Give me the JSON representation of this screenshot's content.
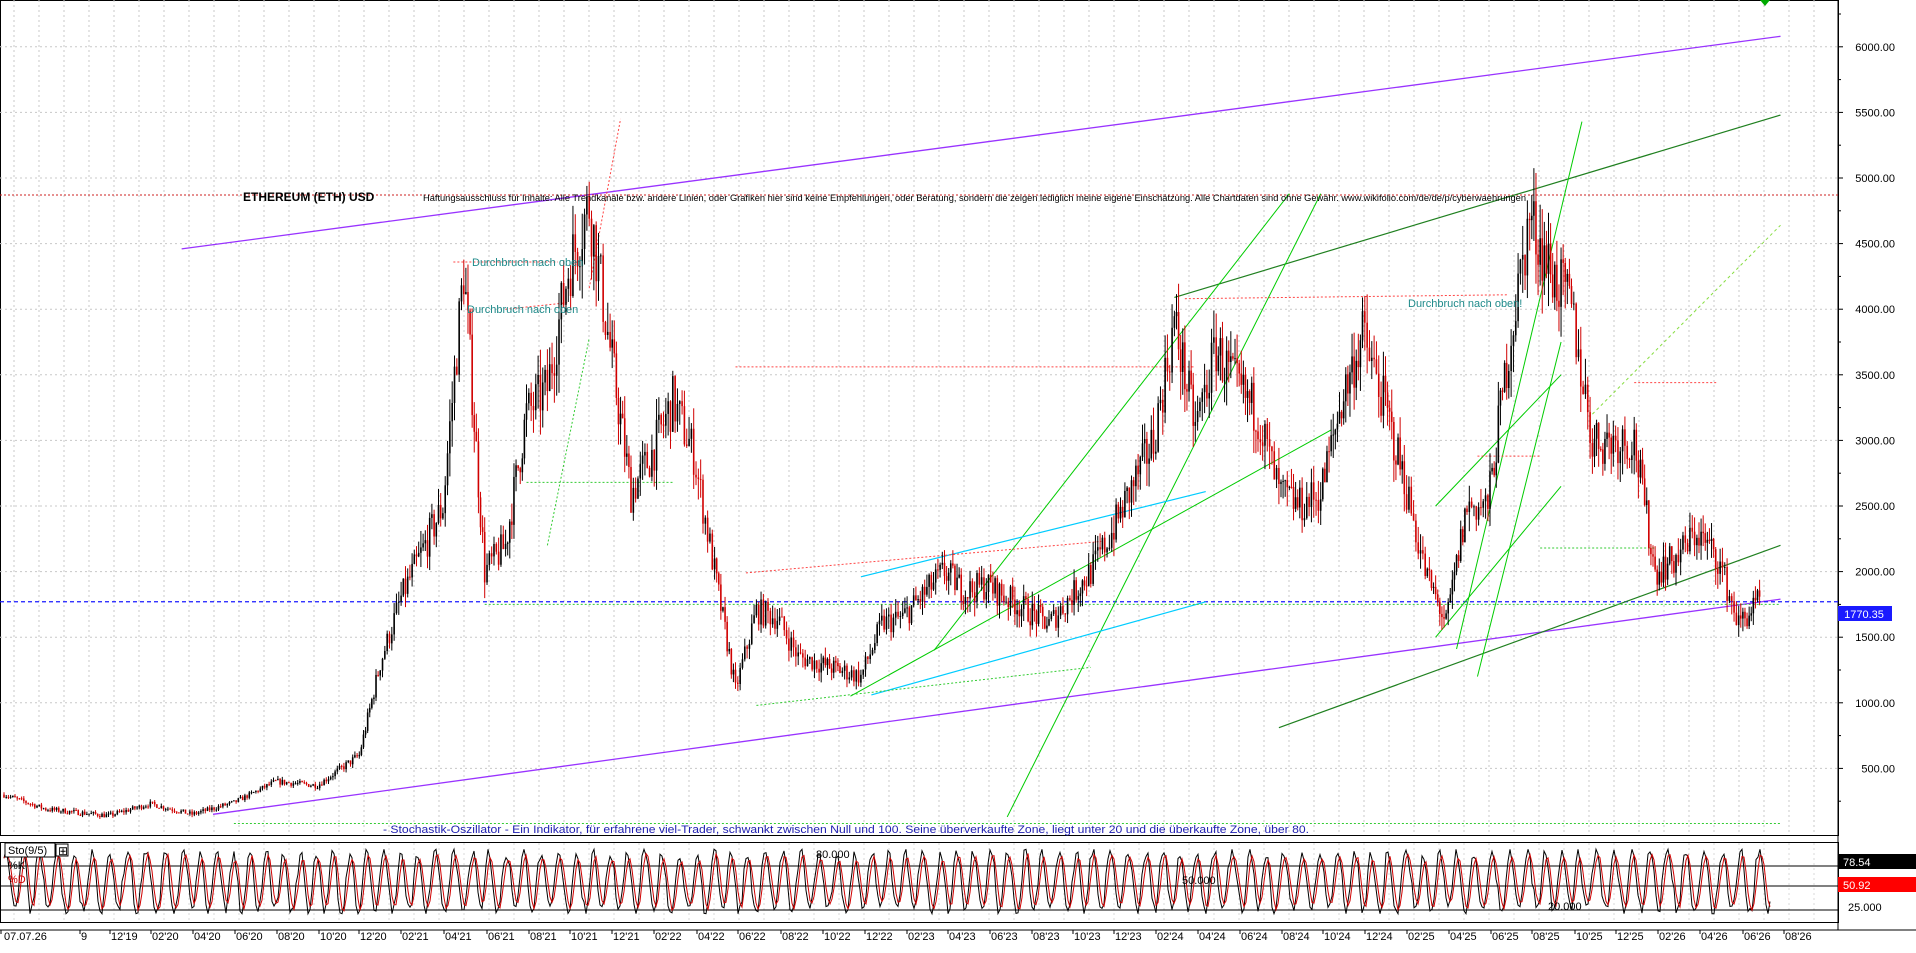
{
  "header": {
    "title": "ETHEREUM (ETH) USD",
    "disclaimer": "Haftungsausschluss für Inhalte: Alle Trendkanäle bzw. andere Linien, oder Grafiken hier sind keine Empfehlungen, oder Beratung, sondern die zeigen lediglich meine eigene Einschätzung. Alle Chartdaten sind ohne Gewähr. www.wikifolio.com/de/de/p/cyberwaehrungen"
  },
  "annotations": {
    "breakout_1": "Durchbruch nach oben",
    "breakout_2": "Durchbruch nach oben",
    "breakout_3": "Durchbruch nach oben!"
  },
  "oscillator": {
    "name": "Sto(9/5)",
    "k_label": "%K",
    "d_label": "%D",
    "k_value": "78.54",
    "d_value": "50.92",
    "level_80": "80.000",
    "level_50": "50.000",
    "level_20": "20.000",
    "axis_25": "25.000",
    "description": "- Stochastik-Oszillator - Ein Indikator, für erfahrene viel-Trader, schwankt zwischen Null und 100. Seine überverkaufte Zone, liegt unter 20 und die überkaufte Zone, über 80."
  },
  "price_marker": {
    "label": "1770.35",
    "value": 1770.35,
    "color": "#1a1aff"
  },
  "colors": {
    "candle_up": "#000000",
    "candle_down": "#d00000",
    "channel": "#9933ff",
    "green_line": "#00cc00",
    "dark_green_line": "#208020",
    "cyan_line": "#00ccff",
    "red_dotted": "#ff4444",
    "green_dotted": "#33cc33"
  },
  "chart_data": {
    "type": "candlestick",
    "title": "ETHEREUM (ETH) USD",
    "ylim": [
      0,
      6500
    ],
    "y_ticks": [
      "6000.00",
      "5500.00",
      "5000.00",
      "4500.00",
      "4000.00",
      "3500.00",
      "3000.00",
      "2500.00",
      "2000.00",
      "1500.00",
      "1000.00",
      "500.00"
    ],
    "x_ticks": [
      "07.07.26",
      "9",
      "12'19",
      "02'20",
      "04'20",
      "06'20",
      "08'20",
      "10'20",
      "12'20",
      "02'21",
      "04'21",
      "06'21",
      "08'21",
      "10'21",
      "12'21",
      "02'22",
      "04'22",
      "06'22",
      "08'22",
      "10'22",
      "12'22",
      "02'23",
      "04'23",
      "06'23",
      "08'23",
      "10'23",
      "12'23",
      "02'24",
      "04'24",
      "06'24",
      "08'24",
      "10'24",
      "12'24",
      "02'25",
      "04'25",
      "06'25",
      "08'25",
      "10'25",
      "12'25",
      "02'26",
      "04'26",
      "06'26",
      "08'26"
    ],
    "grid": true,
    "series": [
      {
        "values": [
          {
            "t": "07'19",
            "v": 300
          },
          {
            "t": "09'19",
            "v": 190
          },
          {
            "t": "12'19",
            "v": 140
          },
          {
            "t": "02'20",
            "v": 230
          },
          {
            "t": "04'20",
            "v": 150
          },
          {
            "t": "06'20",
            "v": 240
          },
          {
            "t": "08'20",
            "v": 400
          },
          {
            "t": "10'20",
            "v": 370
          },
          {
            "t": "12'20",
            "v": 600
          },
          {
            "t": "01'21",
            "v": 1300
          },
          {
            "t": "02'21",
            "v": 1800
          },
          {
            "t": "04'21",
            "v": 2500
          },
          {
            "t": "05'21",
            "v": 4300
          },
          {
            "t": "06'21",
            "v": 2000
          },
          {
            "t": "07'21",
            "v": 2200
          },
          {
            "t": "08'21",
            "v": 3200
          },
          {
            "t": "09'21",
            "v": 3400
          },
          {
            "t": "10'21",
            "v": 4300
          },
          {
            "t": "11'21",
            "v": 4800
          },
          {
            "t": "12'21",
            "v": 3700
          },
          {
            "t": "01'22",
            "v": 2600
          },
          {
            "t": "02'22",
            "v": 2900
          },
          {
            "t": "03'22",
            "v": 3300
          },
          {
            "t": "04'22",
            "v": 2900
          },
          {
            "t": "05'22",
            "v": 2000
          },
          {
            "t": "06'22",
            "v": 1100
          },
          {
            "t": "07'22",
            "v": 1700
          },
          {
            "t": "08'22",
            "v": 1650
          },
          {
            "t": "09'22",
            "v": 1350
          },
          {
            "t": "10'22",
            "v": 1300
          },
          {
            "t": "11'22",
            "v": 1250
          },
          {
            "t": "12'22",
            "v": 1200
          },
          {
            "t": "01'23",
            "v": 1600
          },
          {
            "t": "02'23",
            "v": 1650
          },
          {
            "t": "04'23",
            "v": 2000
          },
          {
            "t": "05'23",
            "v": 1850
          },
          {
            "t": "06'23",
            "v": 1900
          },
          {
            "t": "08'23",
            "v": 1700
          },
          {
            "t": "09'23",
            "v": 1600
          },
          {
            "t": "10'23",
            "v": 1800
          },
          {
            "t": "11'23",
            "v": 2000
          },
          {
            "t": "12'23",
            "v": 2300
          },
          {
            "t": "02'24",
            "v": 3000
          },
          {
            "t": "03'24",
            "v": 3900
          },
          {
            "t": "04'24",
            "v": 3100
          },
          {
            "t": "05'24",
            "v": 3700
          },
          {
            "t": "06'24",
            "v": 3400
          },
          {
            "t": "07'24",
            "v": 3200
          },
          {
            "t": "08'24",
            "v": 2600
          },
          {
            "t": "09'24",
            "v": 2500
          },
          {
            "t": "10'24",
            "v": 2600
          },
          {
            "t": "11'24",
            "v": 3300
          },
          {
            "t": "12'24",
            "v": 3800
          },
          {
            "t": "01'25",
            "v": 3300
          },
          {
            "t": "02'25",
            "v": 2700
          },
          {
            "t": "03'25",
            "v": 2000
          },
          {
            "t": "04'25",
            "v": 1600
          },
          {
            "t": "05'25",
            "v": 2500
          },
          {
            "t": "06'25",
            "v": 2500
          },
          {
            "t": "07'25",
            "v": 3700
          },
          {
            "t": "08'25",
            "v": 4700
          },
          {
            "t": "09'25",
            "v": 4300
          },
          {
            "t": "10'25",
            "v": 4000
          },
          {
            "t": "11'25",
            "v": 3000
          },
          {
            "t": "12'25",
            "v": 3000
          },
          {
            "t": "01'26",
            "v": 3000
          },
          {
            "t": "02'26",
            "v": 2000
          },
          {
            "t": "03'26",
            "v": 2100
          },
          {
            "t": "04'26",
            "v": 2300
          },
          {
            "t": "05'26",
            "v": 2100
          },
          {
            "t": "06'26",
            "v": 1600
          },
          {
            "t": "07'26",
            "v": 1770
          }
        ]
      }
    ]
  }
}
